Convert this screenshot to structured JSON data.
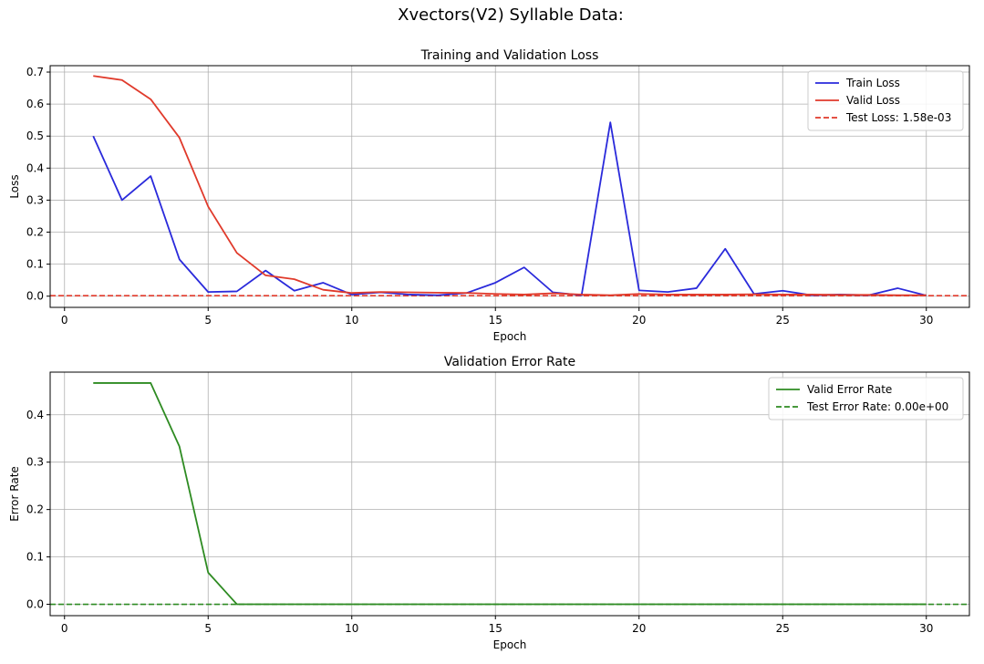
{
  "figure": {
    "title": "Xvectors(V2) Syllable Data:"
  },
  "chart_data": [
    {
      "type": "line",
      "title": "Training and Validation Loss",
      "xlabel": "Epoch",
      "ylabel": "Loss",
      "xlim": [
        -0.5,
        31.5
      ],
      "ylim": [
        -0.035,
        0.72
      ],
      "xticks": [
        0,
        5,
        10,
        15,
        20,
        25,
        30
      ],
      "xtick_labels": [
        "0",
        "5",
        "10",
        "15",
        "20",
        "25",
        "30"
      ],
      "yticks": [
        0.0,
        0.1,
        0.2,
        0.3,
        0.4,
        0.5,
        0.6,
        0.7
      ],
      "ytick_labels": [
        "0.0",
        "0.1",
        "0.2",
        "0.3",
        "0.4",
        "0.5",
        "0.6",
        "0.7"
      ],
      "grid": true,
      "legend_position": "top-right",
      "x": [
        1,
        2,
        3,
        4,
        5,
        6,
        7,
        8,
        9,
        10,
        11,
        12,
        13,
        14,
        15,
        16,
        17,
        18,
        19,
        20,
        21,
        22,
        23,
        24,
        25,
        26,
        27,
        28,
        29,
        30
      ],
      "series": [
        {
          "name": "Train Loss",
          "color": "#2a2adb",
          "style": "solid",
          "values": [
            0.5,
            0.3,
            0.375,
            0.115,
            0.013,
            0.015,
            0.08,
            0.017,
            0.042,
            0.005,
            0.012,
            0.005,
            0.003,
            0.01,
            0.042,
            0.09,
            0.012,
            0.003,
            0.543,
            0.018,
            0.013,
            0.025,
            0.148,
            0.007,
            0.017,
            0.003,
            0.005,
            0.003,
            0.025,
            0.002
          ]
        },
        {
          "name": "Valid Loss",
          "color": "#e03a2b",
          "style": "solid",
          "values": [
            0.688,
            0.675,
            0.615,
            0.495,
            0.28,
            0.135,
            0.065,
            0.053,
            0.02,
            0.01,
            0.013,
            0.012,
            0.011,
            0.01,
            0.007,
            0.005,
            0.009,
            0.005,
            0.003,
            0.007,
            0.005,
            0.005,
            0.005,
            0.006,
            0.005,
            0.005,
            0.004,
            0.004,
            0.003,
            0.003
          ]
        }
      ],
      "reference_lines": [
        {
          "name": "Test Loss: 1.58e-03",
          "value": 0.00158,
          "color": "#e03a2b",
          "style": "dashed"
        }
      ]
    },
    {
      "type": "line",
      "title": "Validation Error Rate",
      "xlabel": "Epoch",
      "ylabel": "Error Rate",
      "xlim": [
        -0.5,
        31.5
      ],
      "ylim": [
        -0.024,
        0.49
      ],
      "xticks": [
        0,
        5,
        10,
        15,
        20,
        25,
        30
      ],
      "xtick_labels": [
        "0",
        "5",
        "10",
        "15",
        "20",
        "25",
        "30"
      ],
      "yticks": [
        0.0,
        0.1,
        0.2,
        0.3,
        0.4
      ],
      "ytick_labels": [
        "0.0",
        "0.1",
        "0.2",
        "0.3",
        "0.4"
      ],
      "grid": true,
      "legend_position": "top-right",
      "x": [
        1,
        2,
        3,
        4,
        5,
        6,
        7,
        8,
        9,
        10,
        11,
        12,
        13,
        14,
        15,
        16,
        17,
        18,
        19,
        20,
        21,
        22,
        23,
        24,
        25,
        26,
        27,
        28,
        29,
        30
      ],
      "series": [
        {
          "name": "Valid Error Rate",
          "color": "#2e8b22",
          "style": "solid",
          "values": [
            0.467,
            0.467,
            0.467,
            0.333,
            0.067,
            0,
            0,
            0,
            0,
            0,
            0,
            0,
            0,
            0,
            0,
            0,
            0,
            0,
            0,
            0,
            0,
            0,
            0,
            0,
            0,
            0,
            0,
            0,
            0,
            0
          ]
        }
      ],
      "reference_lines": [
        {
          "name": "Test Error Rate: 0.00e+00",
          "value": 0.0,
          "color": "#2e8b22",
          "style": "dashed"
        }
      ]
    }
  ]
}
